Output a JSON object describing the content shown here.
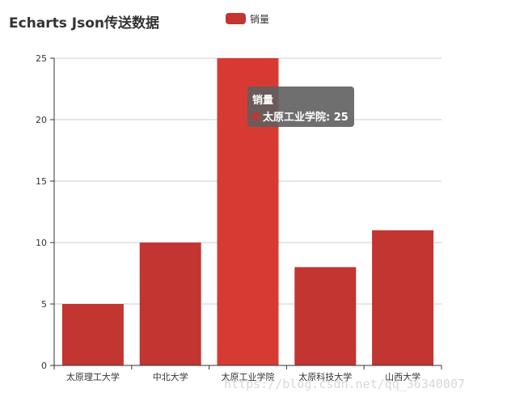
{
  "chart_data": {
    "type": "bar",
    "title": "Echarts Json传送数据",
    "categories": [
      "太原理工大学",
      "中北大学",
      "太原工业学院",
      "太原科技大学",
      "山西大学"
    ],
    "series": [
      {
        "name": "销量",
        "values": [
          5,
          10,
          25,
          8,
          11
        ]
      }
    ],
    "ylim": [
      0,
      25
    ],
    "yticks": [
      0,
      5,
      10,
      15,
      20,
      25
    ],
    "grid": true,
    "legend_position": "top-center"
  },
  "tooltip": {
    "title": "销量",
    "item": "太原工业学院: 25",
    "category_index": 2
  },
  "watermark": "https://blog.csdn.net/qq_36340007",
  "colors": {
    "bar": "#c23531",
    "bar_highlight": "#d73a33",
    "axis": "#333333",
    "grid": "#cccccc",
    "tooltip_bg": "#5f5f5f"
  }
}
